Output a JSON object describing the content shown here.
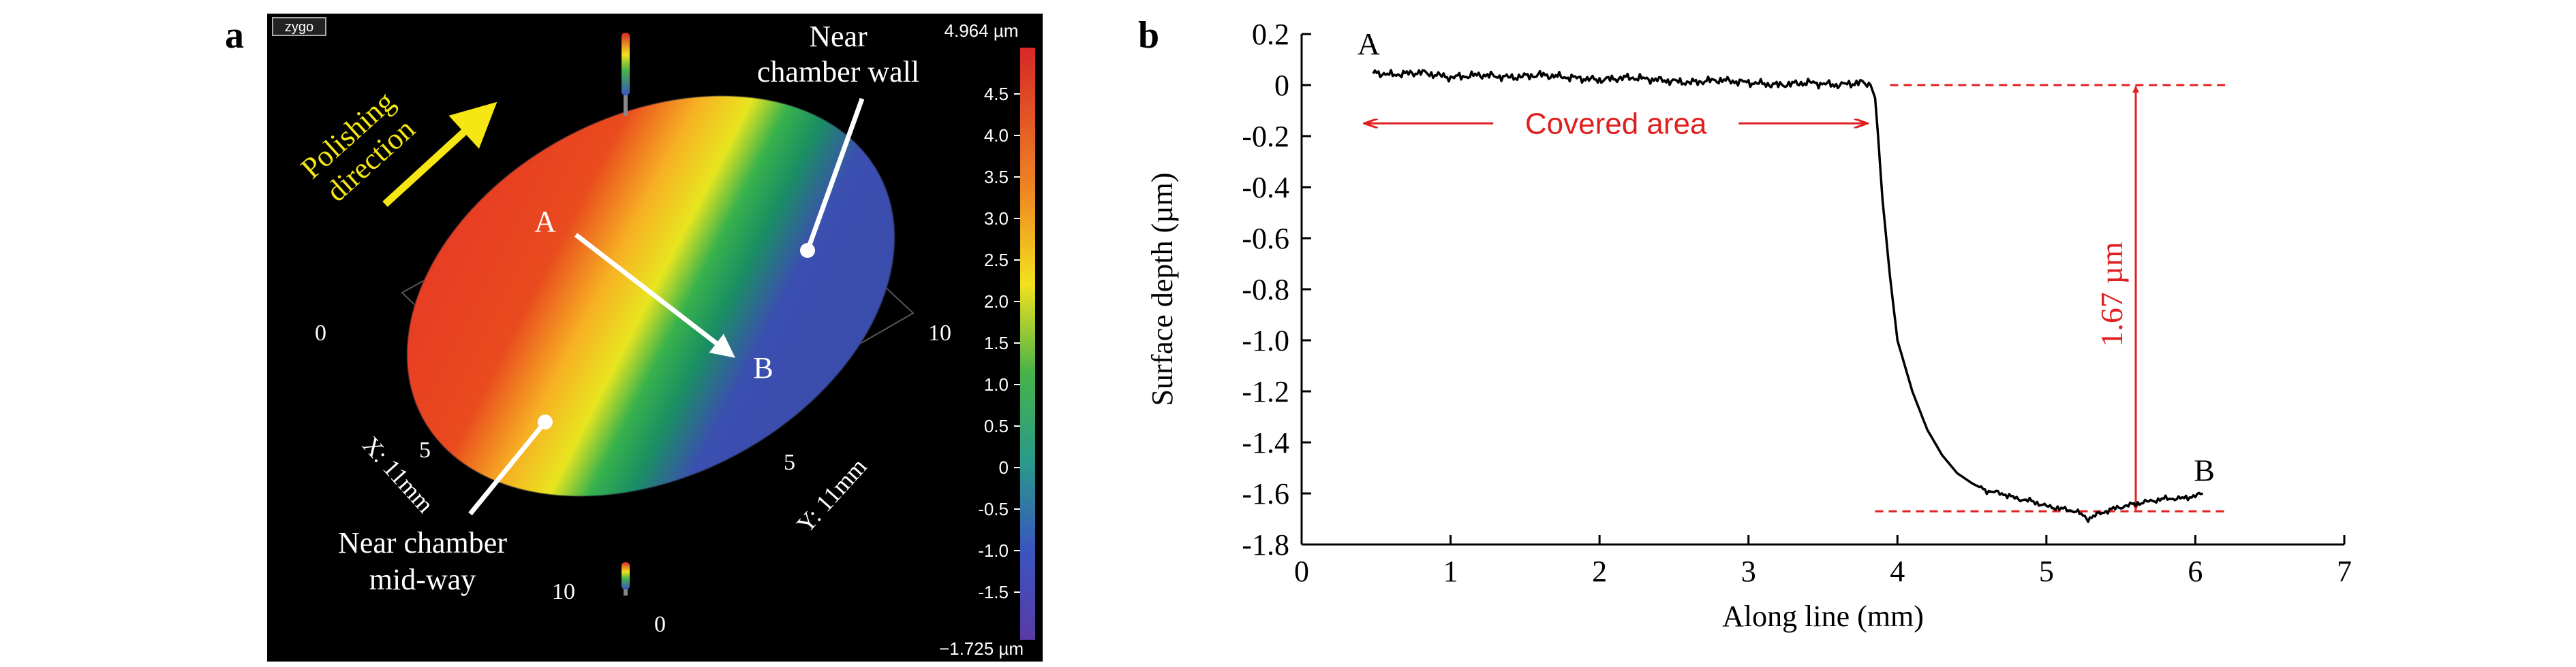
{
  "panel_a": {
    "label": "a",
    "logo_text": "zygo",
    "polishing_label": [
      "Polishing",
      "direction"
    ],
    "wall_label": [
      "Near",
      "chamber wall"
    ],
    "midway_label": [
      "Near chamber",
      "mid-way"
    ],
    "point_a": "A",
    "point_b": "B",
    "x_axis_label": "X: 11mm",
    "y_axis_label": "Y: 11mm",
    "x_ticks": [
      "0",
      "5",
      "10"
    ],
    "y_ticks": [
      "0",
      "5",
      "10"
    ],
    "colorbar": {
      "max_label": "4.964 µm",
      "min_label": "−1.725 µm",
      "ticks": [
        "4.5",
        "4.0",
        "3.5",
        "3.0",
        "2.5",
        "2.0",
        "1.5",
        "1.0",
        "0.5",
        "0",
        "-0.5",
        "-1.0",
        "-1.5"
      ]
    },
    "colors": {
      "arrow": "#f5e614",
      "background": "#000000"
    }
  },
  "chart_data": {
    "type": "line",
    "panel_label": "b",
    "xlabel": "Along line (mm)",
    "ylabel": "Surface depth (µm)",
    "xlim": [
      0,
      7
    ],
    "ylim": [
      -1.8,
      0.2
    ],
    "x_ticks": [
      "0",
      "1",
      "2",
      "3",
      "4",
      "5",
      "6",
      "7"
    ],
    "y_ticks": [
      "0.2",
      "0",
      "-0.2",
      "-0.4",
      "-0.6",
      "-0.8",
      "-1.0",
      "-1.2",
      "-1.4",
      "-1.6",
      "-1.8"
    ],
    "grid": false,
    "series": [
      {
        "x": [
          0.48,
          0.6,
          0.8,
          1.0,
          1.2,
          1.4,
          1.6,
          1.8,
          2.0,
          2.2,
          2.4,
          2.6,
          2.8,
          3.0,
          3.2,
          3.4,
          3.6,
          3.75,
          3.82,
          3.85,
          3.87,
          3.9,
          3.95,
          4.0,
          4.1,
          4.2,
          4.3,
          4.4,
          4.5,
          4.6,
          4.7,
          4.8,
          4.9,
          5.0,
          5.1,
          5.2,
          5.28,
          5.35,
          5.45,
          5.6,
          5.7,
          5.8,
          5.9,
          6.0,
          6.05
        ],
        "y": [
          0.05,
          0.04,
          0.05,
          0.03,
          0.04,
          0.03,
          0.04,
          0.03,
          0.02,
          0.03,
          0.02,
          0.01,
          0.02,
          0.01,
          0.0,
          0.01,
          0.0,
          0.01,
          0.0,
          -0.05,
          -0.2,
          -0.45,
          -0.75,
          -1.0,
          -1.2,
          -1.35,
          -1.45,
          -1.52,
          -1.56,
          -1.59,
          -1.6,
          -1.62,
          -1.63,
          -1.65,
          -1.66,
          -1.67,
          -1.7,
          -1.68,
          -1.66,
          -1.64,
          -1.63,
          -1.62,
          -1.62,
          -1.61,
          -1.6
        ]
      }
    ],
    "annotations": {
      "start_label": "A",
      "end_label": "B",
      "covered_label": "Covered area",
      "depth_label": "1.67 µm",
      "upper_ref_y": 0.0,
      "lower_ref_y": -1.67,
      "ref_x_range": [
        3.95,
        6.2
      ],
      "covered_x_range": [
        0.42,
        3.8
      ],
      "covered_y": -0.15,
      "depth_arrow_x": 5.6
    },
    "colors": {
      "line": "#000000",
      "annotation": "#e02020"
    }
  }
}
